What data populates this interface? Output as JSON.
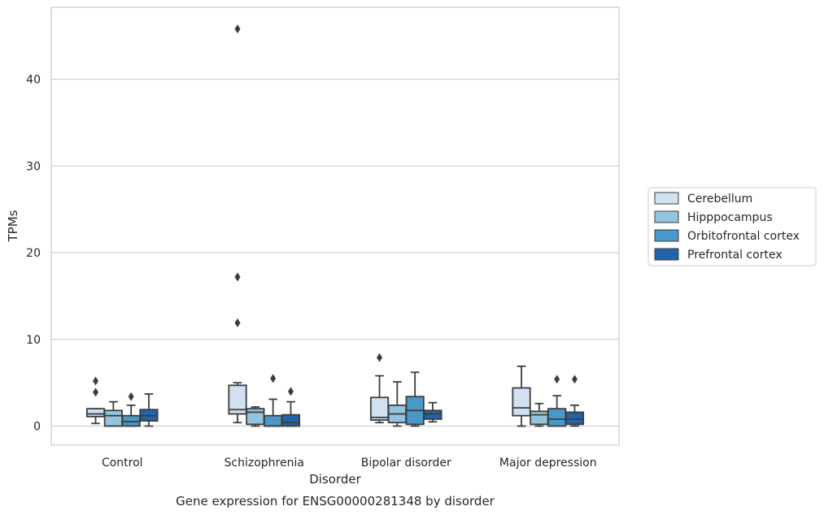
{
  "chart_data": {
    "type": "box",
    "title": "",
    "caption": "Gene expression for ENSG00000281348 by disorder",
    "xlabel": "Disorder",
    "ylabel": "TPMs",
    "ylim": [
      -2.2,
      48.3
    ],
    "yticks": [
      0,
      10,
      20,
      30,
      40
    ],
    "grid": "horizontal",
    "legend_position": "right",
    "categories": [
      "Control",
      "Schizophrenia",
      "Bipolar disorder",
      "Major depression"
    ],
    "series": [
      {
        "name": "Cerebellum",
        "color": "#d0e1f2",
        "boxes": [
          {
            "whisker_low": 0.3,
            "q1": 1.1,
            "median": 1.4,
            "q3": 2.0,
            "whisker_high": 2.0,
            "outliers": [
              5.2,
              3.9
            ]
          },
          {
            "whisker_low": 0.4,
            "q1": 1.4,
            "median": 1.9,
            "q3": 4.7,
            "whisker_high": 5.0,
            "outliers": [
              45.8,
              17.2,
              11.9
            ]
          },
          {
            "whisker_low": 0.4,
            "q1": 0.7,
            "median": 1.0,
            "q3": 3.3,
            "whisker_high": 5.8,
            "outliers": [
              7.9
            ]
          },
          {
            "whisker_low": 0.0,
            "q1": 1.2,
            "median": 2.1,
            "q3": 4.4,
            "whisker_high": 6.9,
            "outliers": []
          }
        ]
      },
      {
        "name": "Hipppocampus",
        "color": "#94c4df",
        "boxes": [
          {
            "whisker_low": 0.0,
            "q1": 0.0,
            "median": 1.2,
            "q3": 1.8,
            "whisker_high": 2.8,
            "outliers": []
          },
          {
            "whisker_low": 0.0,
            "q1": 0.2,
            "median": 1.6,
            "q3": 2.0,
            "whisker_high": 2.2,
            "outliers": []
          },
          {
            "whisker_low": 0.0,
            "q1": 0.4,
            "median": 1.4,
            "q3": 2.4,
            "whisker_high": 5.1,
            "outliers": []
          },
          {
            "whisker_low": 0.0,
            "q1": 0.2,
            "median": 1.3,
            "q3": 1.7,
            "whisker_high": 2.6,
            "outliers": []
          }
        ]
      },
      {
        "name": "Orbitofrontal cortex",
        "color": "#4a98c9",
        "boxes": [
          {
            "whisker_low": 0.0,
            "q1": 0.0,
            "median": 0.5,
            "q3": 1.2,
            "whisker_high": 2.4,
            "outliers": [
              3.4
            ]
          },
          {
            "whisker_low": 0.0,
            "q1": 0.0,
            "median": 0.0,
            "q3": 1.2,
            "whisker_high": 3.1,
            "outliers": [
              5.5
            ]
          },
          {
            "whisker_low": 0.0,
            "q1": 0.2,
            "median": 1.8,
            "q3": 3.4,
            "whisker_high": 6.2,
            "outliers": []
          },
          {
            "whisker_low": 0.0,
            "q1": 0.0,
            "median": 0.8,
            "q3": 2.0,
            "whisker_high": 3.5,
            "outliers": [
              5.4
            ]
          }
        ]
      },
      {
        "name": "Prefrontal cortex",
        "color": "#2164ab",
        "boxes": [
          {
            "whisker_low": 0.0,
            "q1": 0.6,
            "median": 1.2,
            "q3": 1.9,
            "whisker_high": 3.7,
            "outliers": []
          },
          {
            "whisker_low": 0.0,
            "q1": 0.0,
            "median": 0.4,
            "q3": 1.3,
            "whisker_high": 2.8,
            "outliers": [
              4.0
            ]
          },
          {
            "whisker_low": 0.5,
            "q1": 0.8,
            "median": 1.4,
            "q3": 1.8,
            "whisker_high": 2.7,
            "outliers": []
          },
          {
            "whisker_low": 0.0,
            "q1": 0.2,
            "median": 0.8,
            "q3": 1.6,
            "whisker_high": 2.4,
            "outliers": [
              5.4
            ]
          }
        ]
      }
    ]
  }
}
